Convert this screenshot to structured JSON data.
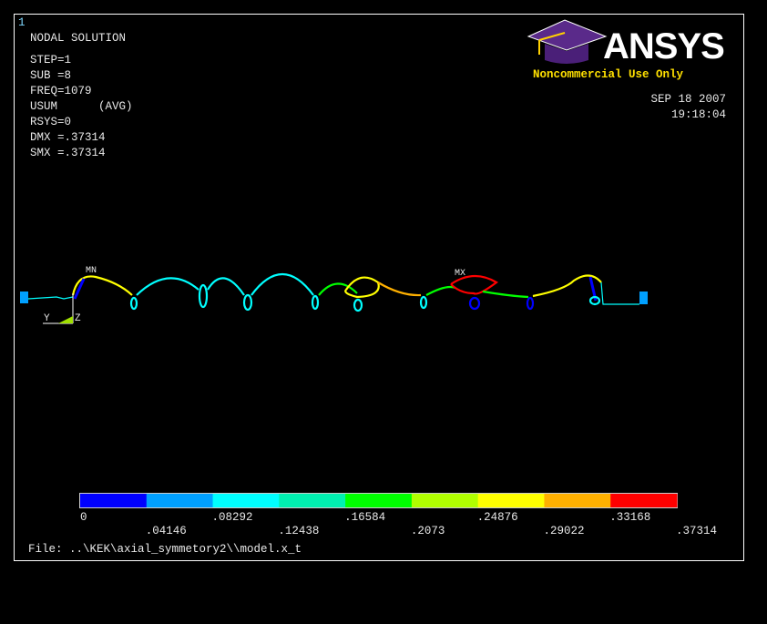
{
  "window": {
    "number": "1"
  },
  "header": {
    "lines": [
      "NODAL SOLUTION",
      "STEP=1",
      "SUB =8",
      "FREQ=1079",
      "USUM      (AVG)",
      "RSYS=0",
      "DMX =.37314",
      "SMX =.37314"
    ]
  },
  "logo": {
    "brand": "ANSYS",
    "license": "Noncommercial Use Only"
  },
  "timestamp": {
    "date": "SEP 18 2007",
    "time": "19:18:04"
  },
  "plot": {
    "min_label": "MN",
    "max_label": "MX",
    "axis_y": "Y",
    "axis_z": "Z"
  },
  "legend": {
    "labels": [
      "0",
      ".04146",
      ".08292",
      ".12438",
      ".16584",
      ".2073",
      ".24876",
      ".29022",
      ".33168",
      ".37314"
    ],
    "colors": [
      "#0000ff",
      "#00a0ff",
      "#00ffff",
      "#00f0b0",
      "#00ff00",
      "#b0ff00",
      "#ffff00",
      "#ffb000",
      "#ff0000"
    ]
  },
  "footer": {
    "file": "File: ..\\KEK\\axial_symmetory2\\\\model.x_t"
  }
}
